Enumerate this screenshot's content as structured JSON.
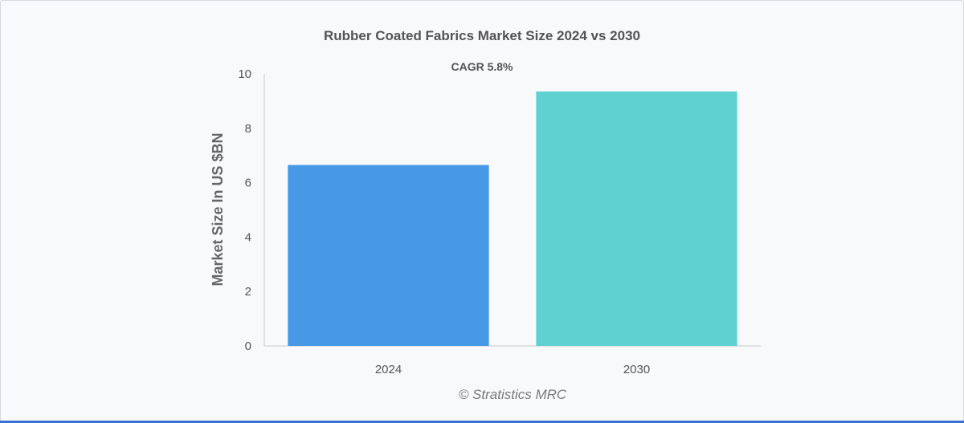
{
  "chart_data": {
    "type": "bar",
    "title": "Rubber Coated Fabrics Market Size 2024 vs 2030",
    "subtitle": "CAGR 5.8%",
    "xlabel": "",
    "ylabel": "Market Size In US $BN",
    "categories": [
      "2024",
      "2030"
    ],
    "values": [
      6.65,
      9.35
    ],
    "colors": [
      "#4799e6",
      "#5fd1d1"
    ],
    "ylim": [
      0,
      10
    ],
    "yticks": [
      "0",
      "2",
      "4",
      "6",
      "8",
      "10"
    ],
    "grid": false,
    "legend": "none"
  },
  "credit": "© Stratistics MRC"
}
